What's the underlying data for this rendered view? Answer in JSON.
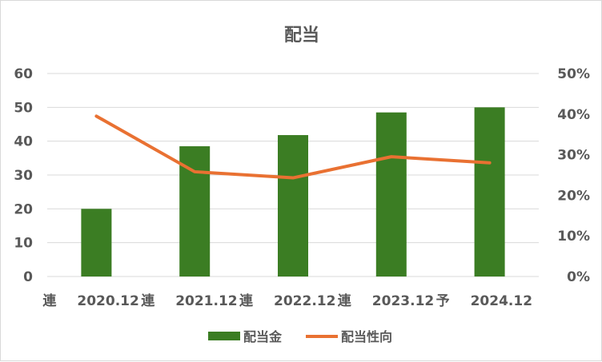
{
  "chart_data": {
    "type": "bar",
    "title": "配当",
    "categories": [
      "連　　2020.12",
      "連　　2021.12",
      "連　　2022.12",
      "連　　2023.12",
      "予　2024.12"
    ],
    "category_labels": [
      {
        "prefix": "連",
        "label": "2020.12"
      },
      {
        "prefix": "連",
        "label": "2021.12"
      },
      {
        "prefix": "連",
        "label": "2022.12"
      },
      {
        "prefix": "連",
        "label": "2023.12"
      },
      {
        "prefix": "予",
        "label": "2024.12"
      }
    ],
    "series": [
      {
        "name": "配当金",
        "type": "bar",
        "axis": "left",
        "color": "#3b7d23",
        "values": [
          20,
          38.5,
          41.8,
          48.5,
          50
        ]
      },
      {
        "name": "配当性向",
        "type": "line",
        "axis": "right",
        "color": "#e97132",
        "values": [
          0.395,
          0.258,
          0.243,
          0.295,
          0.28
        ]
      }
    ],
    "y_left": {
      "min": 0,
      "max": 60,
      "ticks": [
        "0",
        "10",
        "20",
        "30",
        "40",
        "50",
        "60"
      ]
    },
    "y_right": {
      "min": 0,
      "max": 0.5,
      "ticks": [
        "0%",
        "10%",
        "20%",
        "30%",
        "40%",
        "50%"
      ]
    },
    "grid": true,
    "legend": "bottom"
  }
}
